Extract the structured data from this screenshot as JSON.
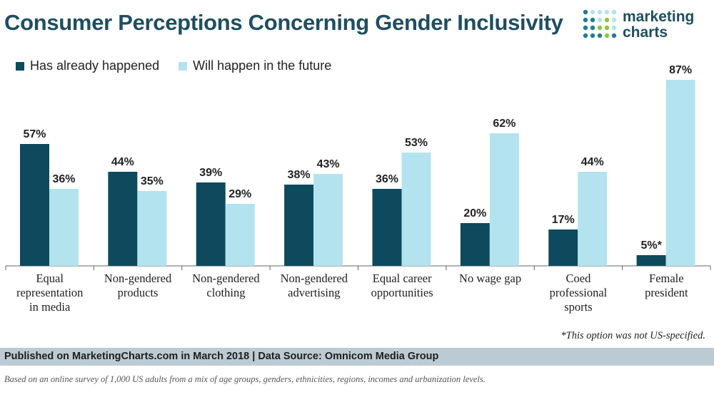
{
  "header": {
    "title": "Consumer Perceptions Concerning Gender Inclusivity",
    "logo_line1": "marketing",
    "logo_line2": "charts"
  },
  "colors": {
    "series1": "#0d4a5e",
    "series2": "#b3e3ee",
    "title": "#1f4e5f"
  },
  "chart_data": {
    "type": "bar",
    "title": "Consumer Perceptions Concerning Gender Inclusivity",
    "xlabel": "",
    "ylabel": "",
    "ylim": [
      0,
      100
    ],
    "grid": false,
    "legend_position": "top-left",
    "categories": [
      [
        "Equal",
        "representation",
        "in media"
      ],
      [
        "Non-gendered",
        "products"
      ],
      [
        "Non-gendered",
        "clothing"
      ],
      [
        "Non-gendered",
        "advertising"
      ],
      [
        "Equal career",
        "opportunities"
      ],
      [
        "No wage gap"
      ],
      [
        "Coed",
        "professional",
        "sports"
      ],
      [
        "Female",
        "president"
      ]
    ],
    "series": [
      {
        "name": "Has already happened",
        "values": [
          57,
          44,
          39,
          38,
          36,
          20,
          17,
          5
        ],
        "labels": [
          "57%",
          "44%",
          "39%",
          "38%",
          "36%",
          "20%",
          "17%",
          "5%*"
        ]
      },
      {
        "name": "Will happen in the future",
        "values": [
          36,
          35,
          29,
          43,
          53,
          62,
          44,
          87
        ],
        "labels": [
          "36%",
          "35%",
          "29%",
          "43%",
          "53%",
          "62%",
          "44%",
          "87%"
        ]
      }
    ]
  },
  "footnote": "*This option was not US-specified.",
  "footer": {
    "published": "Published on MarketingCharts.com in March 2018 | Data Source: Omnicom Media Group",
    "note": "Based on an online survey of 1,000 US adults from a mix of age groups, genders, ethnicities, regions, incomes and urbanization levels."
  }
}
